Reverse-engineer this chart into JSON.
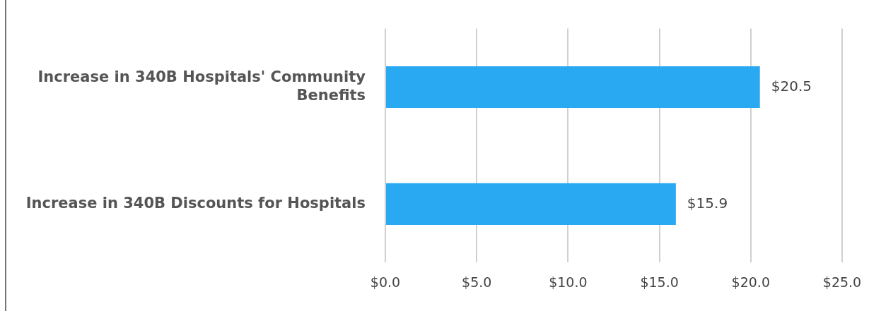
{
  "chart_data": {
    "type": "bar",
    "orientation": "horizontal",
    "categories": [
      "Increase in 340B Hospitals' Community Benefits",
      "Increase in 340B Discounts for Hospitals"
    ],
    "values": [
      20.5,
      15.9
    ],
    "color": "#29a9f2",
    "value_labels": [
      "$20.5",
      "$15.9"
    ],
    "xlim": [
      0,
      25
    ],
    "xticks": [
      {
        "value": 0,
        "label": "$0.0"
      },
      {
        "value": 5,
        "label": "$5.0"
      },
      {
        "value": 10,
        "label": "$10.0"
      },
      {
        "value": 15,
        "label": "$15.0"
      },
      {
        "value": 20,
        "label": "$20.0"
      },
      {
        "value": 25,
        "label": "$25.0"
      }
    ],
    "grid": "x",
    "legend": false
  }
}
